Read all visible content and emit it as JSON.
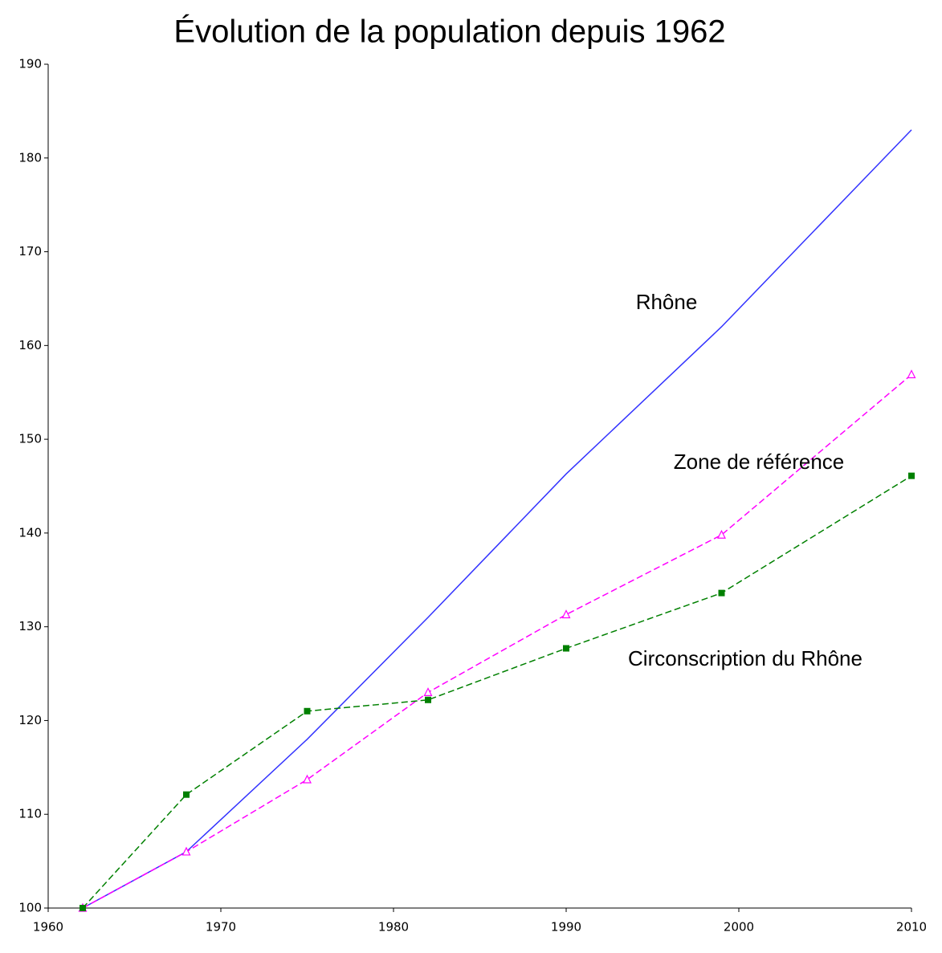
{
  "chart_data": {
    "type": "line",
    "title": "Évolution de la population depuis 1962",
    "x": [
      1962,
      1968,
      1975,
      1982,
      1990,
      1999,
      2010
    ],
    "series": [
      {
        "name": "Rhône",
        "color": "#3333ff",
        "style": "solid",
        "marker": "none",
        "values": [
          100,
          106,
          118,
          131,
          146.3,
          162,
          183
        ]
      },
      {
        "name": "Zone de référence",
        "color": "#ff00ff",
        "style": "dashed",
        "marker": "triangle",
        "values": [
          100,
          106,
          113.7,
          123,
          131.3,
          139.8,
          156.9
        ]
      },
      {
        "name": "Circonscription du Rhône",
        "color": "#008000",
        "style": "dashed",
        "marker": "square",
        "values": [
          100,
          112.1,
          121,
          122.2,
          127.7,
          133.6,
          146.1
        ]
      }
    ],
    "xlim": [
      1960,
      2010
    ],
    "xticks": [
      1960,
      1970,
      1980,
      1990,
      2000,
      2010
    ],
    "ylim": [
      100,
      190
    ],
    "yticks": [
      100,
      110,
      120,
      130,
      140,
      150,
      160,
      170,
      180,
      190
    ]
  }
}
